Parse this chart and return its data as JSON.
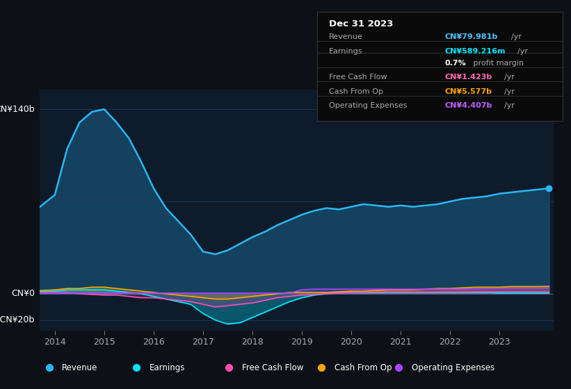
{
  "background_color": "#0d1117",
  "plot_bg_color": "#0d1b2a",
  "title_box": {
    "date": "Dec 31 2023",
    "rows": [
      {
        "label": "Revenue",
        "value": "CN¥79.981b",
        "unit": "/yr",
        "value_color": "#4fc3f7"
      },
      {
        "label": "Earnings",
        "value": "CN¥589.216m",
        "unit": "/yr",
        "value_color": "#00e5ff"
      },
      {
        "label": "",
        "value": "0.7%",
        "unit": " profit margin",
        "value_color": "#ffffff"
      },
      {
        "label": "Free Cash Flow",
        "value": "CN¥1.423b",
        "unit": "/yr",
        "value_color": "#ff69b4"
      },
      {
        "label": "Cash From Op",
        "value": "CN¥5.577b",
        "unit": "/yr",
        "value_color": "#ffa500"
      },
      {
        "label": "Operating Expenses",
        "value": "CN¥4.407b",
        "unit": "/yr",
        "value_color": "#bf5fff"
      }
    ]
  },
  "years": [
    2013.5,
    2014,
    2014.25,
    2014.5,
    2014.75,
    2015,
    2015.25,
    2015.5,
    2015.75,
    2016,
    2016.25,
    2016.5,
    2016.75,
    2017,
    2017.25,
    2017.5,
    2017.75,
    2018,
    2018.25,
    2018.5,
    2018.75,
    2019,
    2019.25,
    2019.5,
    2019.75,
    2020,
    2020.25,
    2020.5,
    2020.75,
    2021,
    2021.25,
    2021.5,
    2021.75,
    2022,
    2022.25,
    2022.5,
    2022.75,
    2023,
    2023.25,
    2023.5,
    2023.75,
    2024
  ],
  "revenue": [
    60,
    75,
    110,
    130,
    138,
    140,
    130,
    118,
    100,
    80,
    65,
    55,
    45,
    32,
    30,
    33,
    38,
    43,
    47,
    52,
    56,
    60,
    63,
    65,
    64,
    66,
    68,
    67,
    66,
    67,
    66,
    67,
    68,
    70,
    72,
    73,
    74,
    76,
    77,
    78,
    79,
    80
  ],
  "earnings": [
    1,
    2,
    3,
    3,
    3,
    3,
    2,
    1,
    0,
    -2,
    -4,
    -6,
    -8,
    -15,
    -20,
    -23,
    -22,
    -18,
    -14,
    -10,
    -6,
    -3,
    -1,
    0,
    1,
    1,
    1,
    1,
    1,
    1,
    1,
    1,
    1,
    1,
    1,
    1,
    1,
    0.5,
    0.5,
    0.5,
    0.5,
    0.5
  ],
  "free_cash_flow": [
    0.5,
    1,
    1,
    0,
    -0.5,
    -1,
    -1,
    -2,
    -3,
    -3,
    -4,
    -5,
    -6,
    -8,
    -10,
    -9,
    -8,
    -7,
    -5,
    -3,
    -2,
    -1,
    -0.5,
    0,
    0.5,
    1,
    1.2,
    1.3,
    1.4,
    1.4,
    1.3,
    1.2,
    1.3,
    1.4,
    1.4,
    1.5,
    1.5,
    1.4,
    1.5,
    1.5,
    1.4,
    1.4
  ],
  "cash_from_op": [
    2,
    3,
    4,
    4,
    5,
    5,
    4,
    3,
    2,
    1,
    0,
    -1,
    -2,
    -3,
    -4,
    -4,
    -3,
    -2,
    -1,
    0,
    1,
    1,
    1,
    1,
    1.5,
    2,
    2,
    2.5,
    3,
    3,
    3,
    3.5,
    4,
    4,
    4.5,
    5,
    5,
    5,
    5.5,
    5.5,
    5.5,
    5.6
  ],
  "operating_expenses": [
    0.5,
    0.5,
    0.5,
    0.5,
    0.5,
    0.5,
    0.5,
    0.5,
    0.5,
    0.5,
    0.5,
    0.5,
    0.5,
    0.5,
    0.5,
    0.5,
    0.5,
    0.5,
    0.5,
    0.5,
    0.5,
    3,
    3.5,
    3.5,
    3.5,
    3.5,
    3.5,
    3.5,
    3.5,
    3.5,
    3.5,
    3.5,
    3.5,
    3.5,
    3.5,
    3.8,
    4,
    4,
    4.2,
    4.3,
    4.3,
    4.4
  ],
  "ylim": [
    -28,
    155
  ],
  "colors": {
    "revenue": "#29b6f6",
    "earnings": "#00e5ff",
    "free_cash_flow": "#ff4db8",
    "cash_from_op": "#ffa500",
    "operating_expenses": "#aa44ff"
  },
  "legend_items": [
    {
      "label": "Revenue",
      "color": "#29b6f6"
    },
    {
      "label": "Earnings",
      "color": "#00e5ff"
    },
    {
      "label": "Free Cash Flow",
      "color": "#ff4db8"
    },
    {
      "label": "Cash From Op",
      "color": "#ffa500"
    },
    {
      "label": "Operating Expenses",
      "color": "#aa44ff"
    }
  ],
  "xticks": [
    2014,
    2015,
    2016,
    2017,
    2018,
    2019,
    2020,
    2021,
    2022,
    2023
  ],
  "yrange": 183,
  "ymin": -28
}
